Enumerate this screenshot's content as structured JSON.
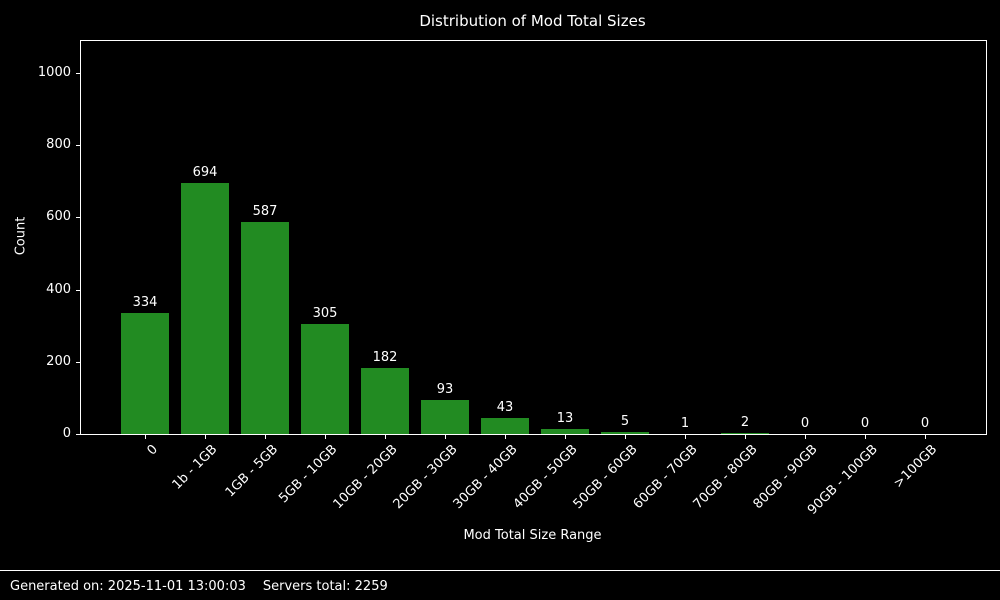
{
  "chart_data": {
    "type": "bar",
    "title": "Distribution of Mod Total Sizes",
    "xlabel": "Mod Total Size Range",
    "ylabel": "Count",
    "categories": [
      "0",
      "1b - 1GB",
      "1GB - 5GB",
      "5GB - 10GB",
      "10GB - 20GB",
      "20GB - 30GB",
      "30GB - 40GB",
      "40GB - 50GB",
      "50GB - 60GB",
      "60GB - 70GB",
      "70GB - 80GB",
      "80GB - 90GB",
      "90GB - 100GB",
      ">100GB"
    ],
    "values": [
      334,
      694,
      587,
      305,
      182,
      93,
      43,
      13,
      5,
      1,
      2,
      0,
      0,
      0
    ],
    "yticks": [
      0,
      200,
      400,
      600,
      800,
      1000
    ],
    "ylim": [
      0,
      1089
    ],
    "grid": false,
    "legend_position": "none",
    "bar_color": "#228B22",
    "background_color": "#000000",
    "text_color": "#ffffff",
    "axis_color": "#ffffff"
  },
  "footer": {
    "generated_on": "Generated on: 2025-11-01 13:00:03",
    "servers_total": "Servers total: 2259"
  }
}
